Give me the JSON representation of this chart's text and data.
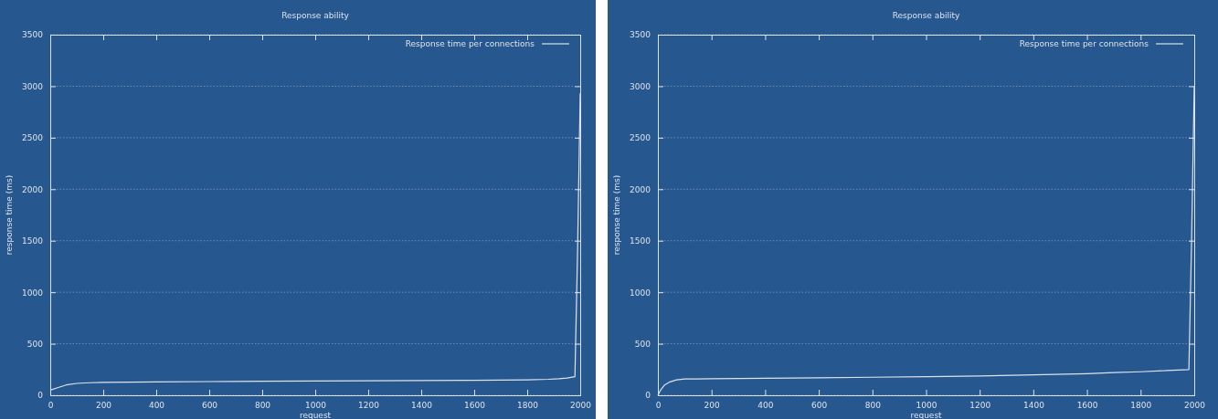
{
  "chart_data": [
    {
      "type": "line",
      "title": "Response ability",
      "xlabel": "request",
      "ylabel": "response time (ms)",
      "xlim": [
        0,
        2000
      ],
      "xticks": [
        0,
        200,
        400,
        600,
        800,
        1000,
        1200,
        1400,
        1600,
        1800,
        2000
      ],
      "ylim": [
        0,
        3500
      ],
      "yticks": [
        0,
        500,
        1000,
        1500,
        2000,
        2500,
        3000,
        3500
      ],
      "grid": "y",
      "legend": "top right",
      "series": [
        {
          "name": "Response time per connections",
          "color": "#dde3ec",
          "x": [
            0,
            30,
            60,
            100,
            150,
            200,
            300,
            400,
            600,
            800,
            1000,
            1200,
            1400,
            1600,
            1700,
            1800,
            1880,
            1920,
            1950,
            1980,
            1990,
            2000
          ],
          "values": [
            50,
            75,
            100,
            115,
            122,
            125,
            128,
            130,
            133,
            136,
            138,
            140,
            142,
            145,
            147,
            150,
            155,
            160,
            167,
            180,
            1400,
            2930
          ]
        }
      ]
    },
    {
      "type": "line",
      "title": "Response ability",
      "xlabel": "request",
      "ylabel": "response time (ms)",
      "xlim": [
        0,
        2000
      ],
      "xticks": [
        0,
        200,
        400,
        600,
        800,
        1000,
        1200,
        1400,
        1600,
        1800,
        2000
      ],
      "ylim": [
        0,
        3500
      ],
      "yticks": [
        0,
        500,
        1000,
        1500,
        2000,
        2500,
        3000,
        3500
      ],
      "grid": "y",
      "legend": "top right",
      "series": [
        {
          "name": "Response time per connections",
          "color": "#dde3ec",
          "x": [
            0,
            10,
            25,
            45,
            70,
            100,
            200,
            400,
            600,
            800,
            1000,
            1200,
            1400,
            1600,
            1700,
            1800,
            1900,
            1980,
            1990,
            2000
          ],
          "values": [
            0,
            50,
            100,
            130,
            150,
            158,
            160,
            165,
            170,
            175,
            180,
            188,
            198,
            210,
            220,
            228,
            240,
            250,
            1500,
            3000
          ]
        }
      ]
    }
  ]
}
